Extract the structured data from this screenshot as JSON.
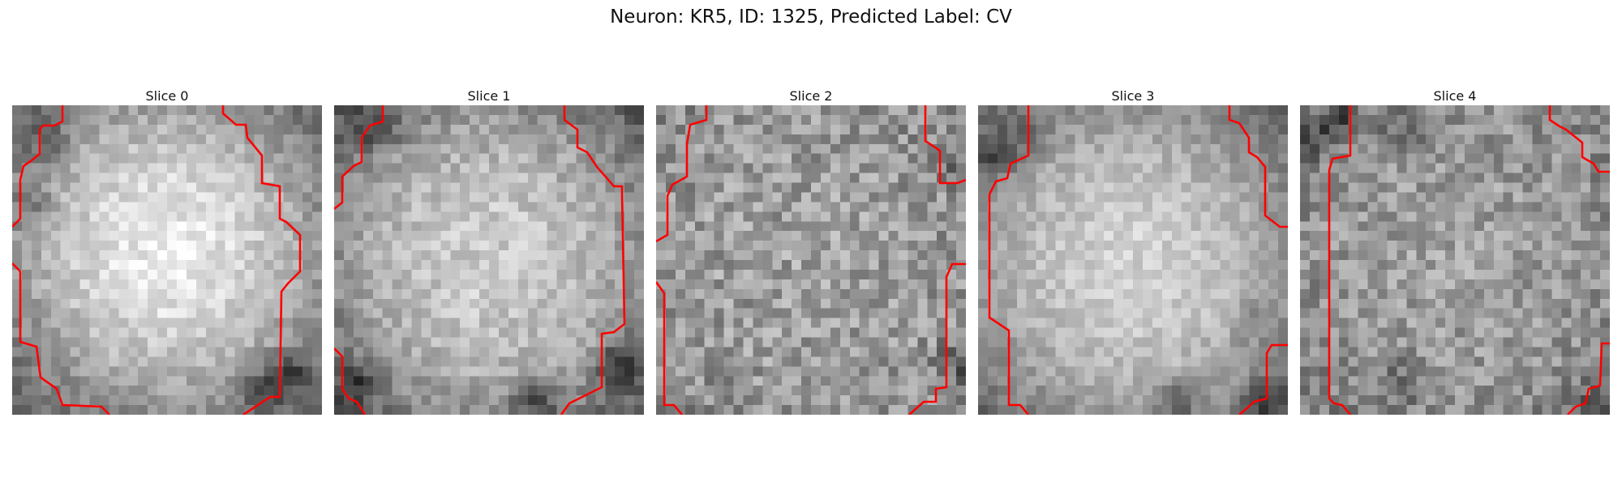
{
  "figure": {
    "title": "Neuron: KR5, ID: 1325, Predicted Label: CV"
  },
  "colors": {
    "contour": "#ff0000",
    "colormap": "grayscale"
  },
  "slices": [
    {
      "label": "Slice 0",
      "image": "grayscale-micrograph-bright-disc"
    },
    {
      "label": "Slice 1",
      "image": "grayscale-micrograph-bright-disc"
    },
    {
      "label": "Slice 2",
      "image": "grayscale-micrograph-noisy"
    },
    {
      "label": "Slice 3",
      "image": "grayscale-micrograph-bright-disc"
    },
    {
      "label": "Slice 4",
      "image": "grayscale-micrograph-noisy"
    }
  ]
}
